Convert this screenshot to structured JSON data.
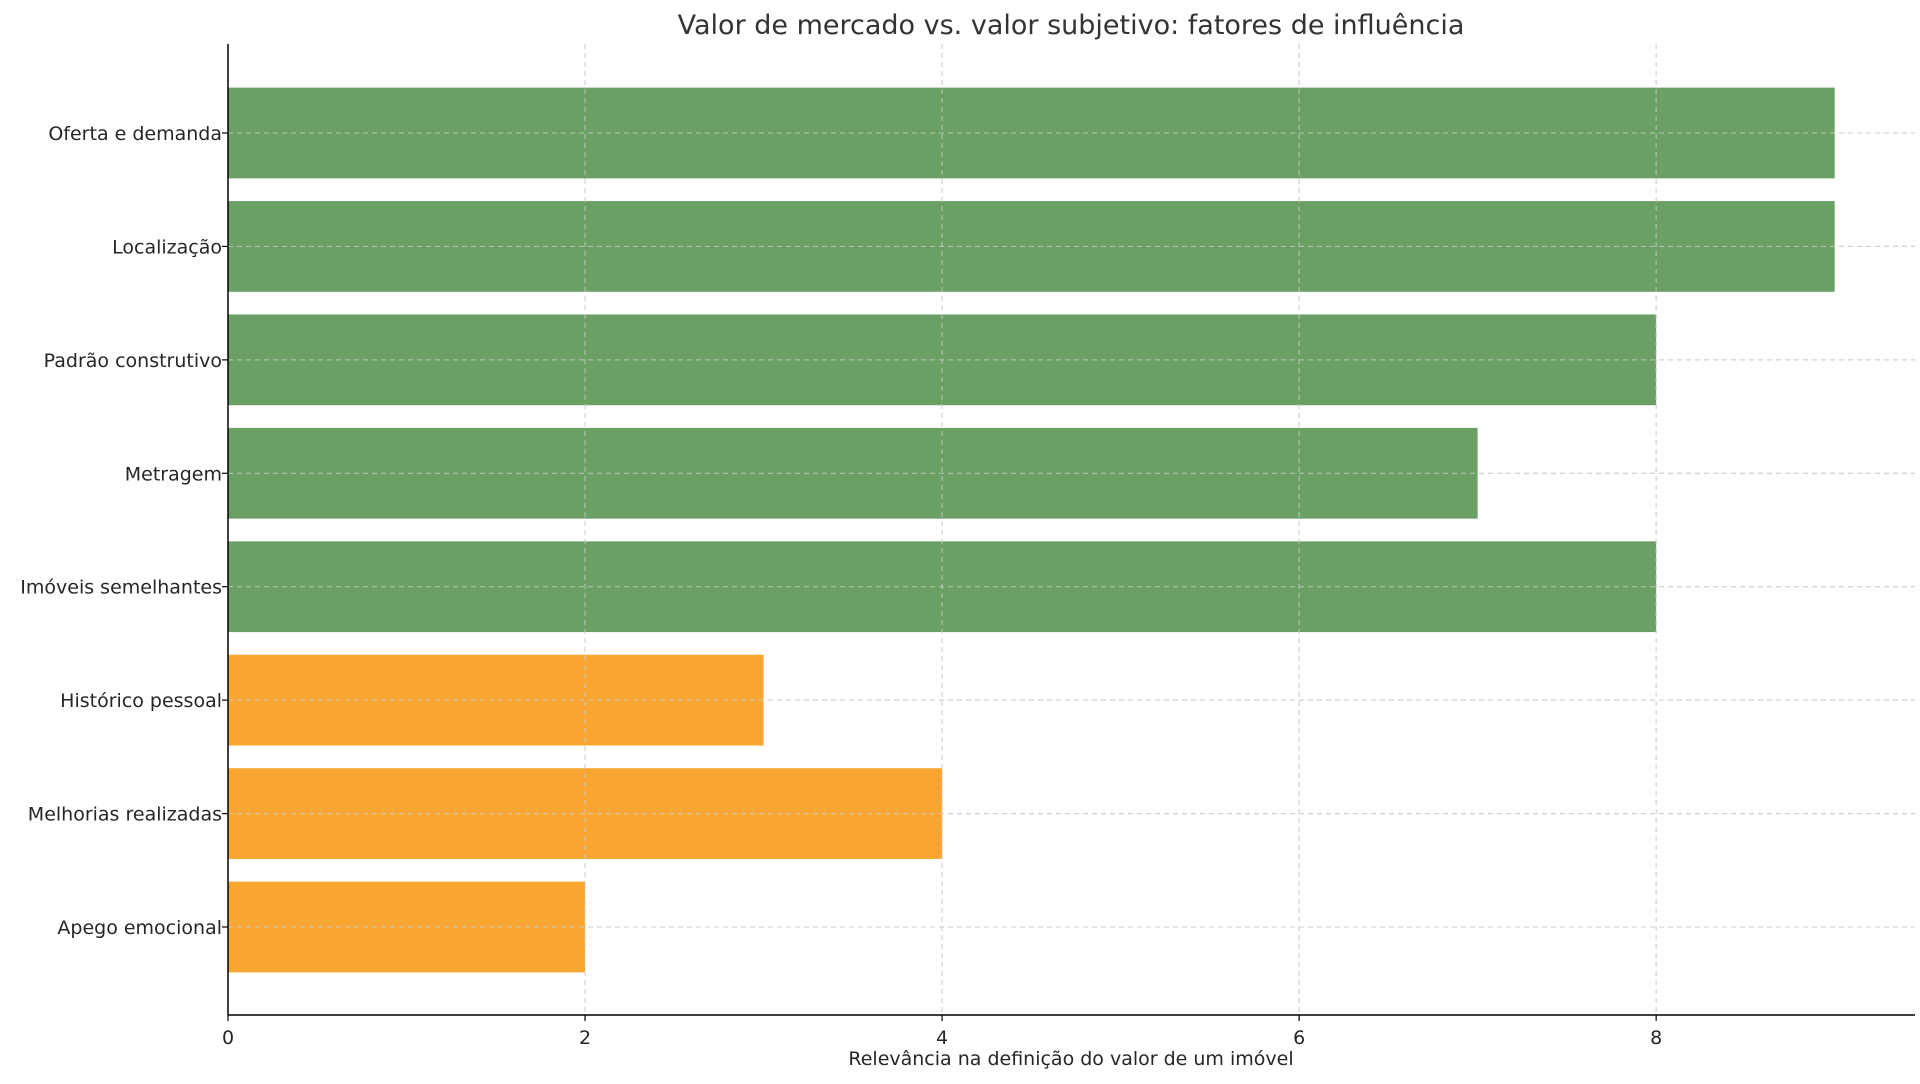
{
  "chart_data": {
    "type": "bar",
    "orientation": "horizontal",
    "title": "Valor de mercado vs. valor subjetivo: fatores de influência",
    "xlabel": "Relevância na definição do valor de um imóvel",
    "ylabel": "",
    "xlim": [
      0,
      9.45
    ],
    "xticks": [
      0,
      2,
      4,
      6,
      8
    ],
    "grid": true,
    "categories": [
      "Oferta e demanda",
      "Localização",
      "Padrão construtivo",
      "Metragem",
      "Imóveis semelhantes",
      "Histórico pessoal",
      "Melhorias realizadas",
      "Apego emocional"
    ],
    "values": [
      9,
      9,
      8,
      7,
      8,
      3,
      4,
      2
    ],
    "colors": [
      "#6aa064",
      "#6aa064",
      "#6aa064",
      "#6aa064",
      "#6aa064",
      "#f8a532",
      "#f8a532",
      "#f8a532"
    ]
  }
}
